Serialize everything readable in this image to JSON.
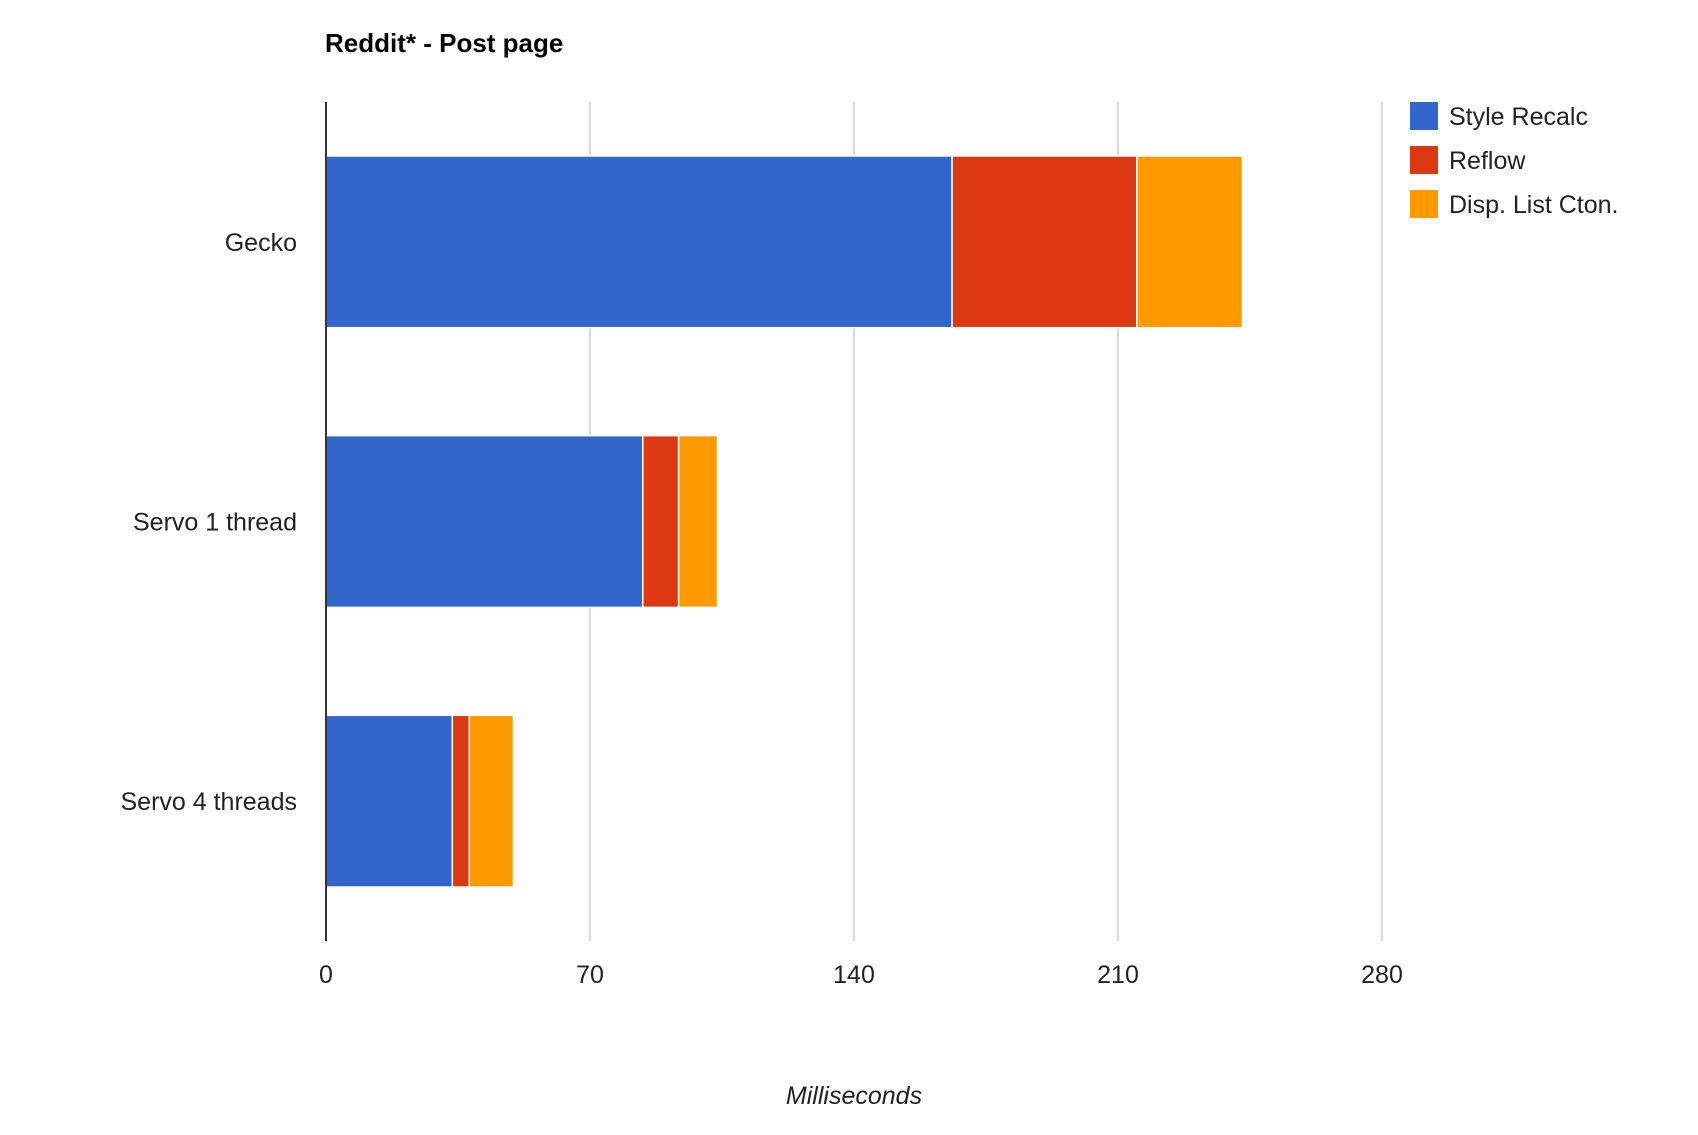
{
  "chart_data": {
    "type": "bar",
    "orientation": "horizontal",
    "stacked": true,
    "title": "Reddit* - Post page",
    "xlabel": "Milliseconds",
    "ylabel": "",
    "xlim": [
      0,
      280
    ],
    "xticks": [
      "0",
      "70",
      "140",
      "210",
      "280"
    ],
    "grid": true,
    "legend_position": "right",
    "categories": [
      "Gecko",
      "Servo 1 thread",
      "Servo 4 threads"
    ],
    "series": [
      {
        "name": "Style Recalc",
        "color": "#3366cc",
        "values": [
          166,
          84,
          33.5
        ]
      },
      {
        "name": "Reflow",
        "color": "#dc3912",
        "values": [
          49,
          9.5,
          4.5
        ]
      },
      {
        "name": "Disp. List Cton.",
        "color": "#ff9900",
        "values": [
          28,
          10.3,
          11.7
        ]
      }
    ]
  }
}
